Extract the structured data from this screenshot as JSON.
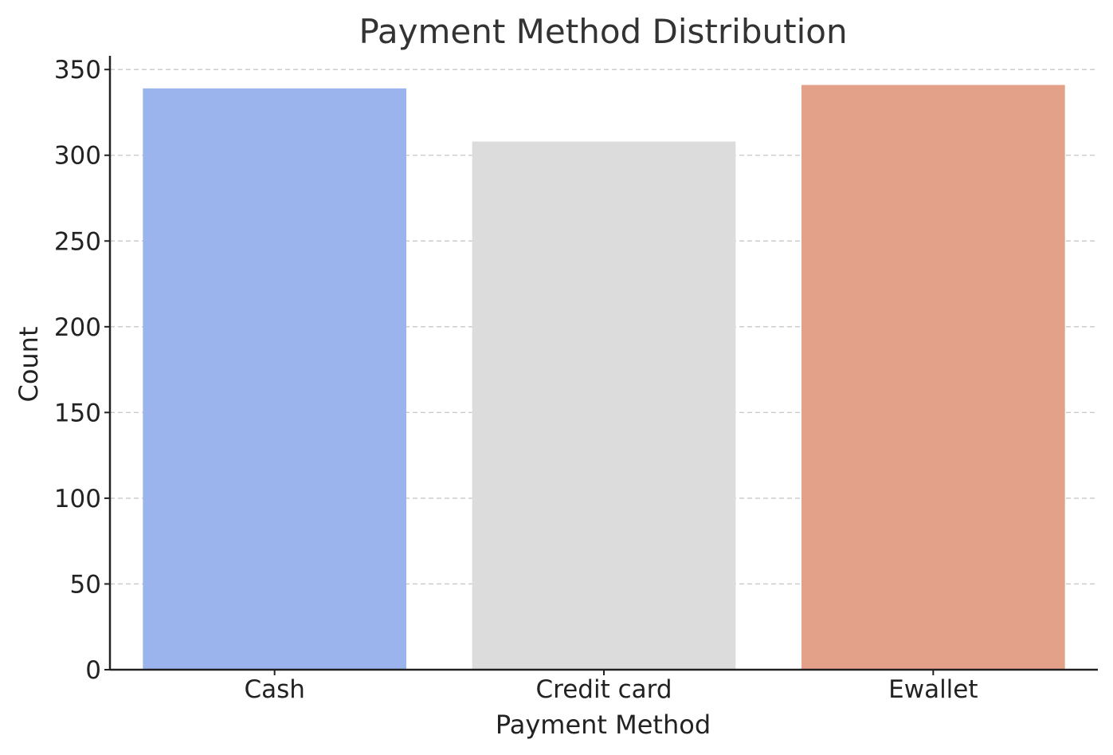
{
  "chart_data": {
    "type": "bar",
    "title": "Payment Method Distribution",
    "xlabel": "Payment Method",
    "ylabel": "Count",
    "categories": [
      "Cash",
      "Credit card",
      "Ewallet"
    ],
    "values": [
      339,
      308,
      341
    ],
    "colors": [
      "#9bb4ee",
      "#dcdcdc",
      "#e3a18a"
    ],
    "ylim": [
      0,
      358
    ],
    "yticks": [
      0,
      50,
      100,
      150,
      200,
      250,
      300,
      350
    ],
    "ytick_labels": [
      "0",
      "50",
      "100",
      "150",
      "200",
      "250",
      "300",
      "350"
    ],
    "grid": "y-dashed",
    "legend": "none"
  }
}
